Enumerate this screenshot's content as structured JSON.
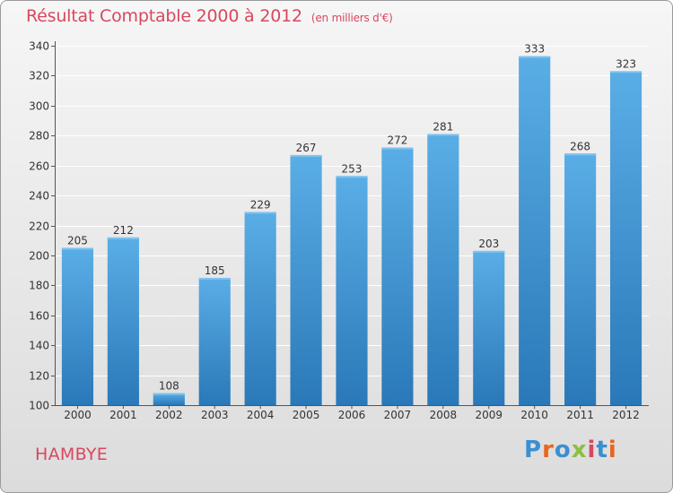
{
  "header": {
    "title": "Résultat Comptable 2000 à 2012",
    "subtitle": "(en milliers d'€)"
  },
  "footer": {
    "town": "HAMBYE",
    "logo_text": "Proxiti",
    "logo_colors": [
      "#3a8fd0",
      "#e8661f",
      "#3a8fd0",
      "#8cbf3f",
      "#d9475f",
      "#3a8fd0",
      "#e8661f"
    ]
  },
  "colors": {
    "title": "#d9475f",
    "bar_top": "#5aaee6",
    "bar_bottom": "#2a78b8",
    "grid": "#ffffff",
    "axis": "#555555"
  },
  "chart_data": {
    "type": "bar",
    "categories": [
      "2000",
      "2001",
      "2002",
      "2003",
      "2004",
      "2005",
      "2006",
      "2007",
      "2008",
      "2009",
      "2010",
      "2011",
      "2012"
    ],
    "values": [
      205,
      212,
      108,
      185,
      229,
      267,
      253,
      272,
      281,
      203,
      333,
      268,
      323
    ],
    "yticks": [
      100,
      120,
      140,
      160,
      180,
      200,
      220,
      240,
      260,
      280,
      300,
      320,
      340
    ],
    "ylim": [
      100,
      340
    ],
    "grid": true,
    "legend": "none"
  }
}
